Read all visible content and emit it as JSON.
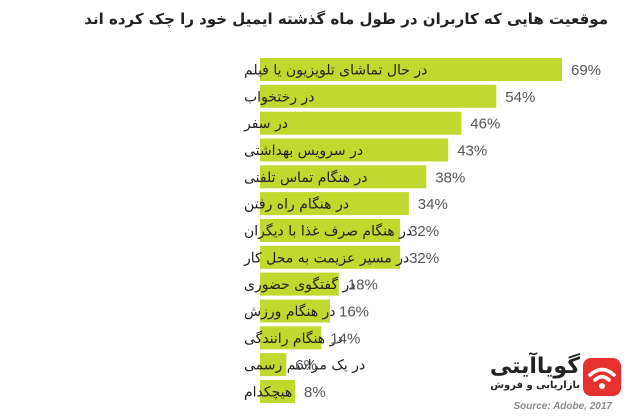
{
  "chart_data": {
    "type": "bar",
    "orientation": "horizontal",
    "title": "موقعیت هایی که کاربران در طول ماه گذشته ایمیل خود را چک کرده اند",
    "categories": [
      "در حال تماشای تلویزیون یا فیلم",
      "در رختخواب",
      "در سفر",
      "در سرویس بهداشتی",
      "در هنگام تماس تلفنی",
      "در هنگام راه رفتن",
      "در هنگام صرف غذا با دیگران",
      "در مسیر عزیمت به محل کار",
      "در گفتگوی حضوری",
      "در هنگام ورزش",
      "در هنگام رانندگی",
      "در یک مراسم رسمی",
      "هیچکدام"
    ],
    "values": [
      69,
      54,
      46,
      43,
      38,
      34,
      32,
      32,
      18,
      16,
      14,
      6,
      8
    ],
    "value_labels": [
      "69%",
      "54%",
      "46%",
      "43%",
      "38%",
      "34%",
      "32%",
      "32%",
      "18%",
      "16%",
      "14%",
      "6%",
      "8%"
    ],
    "unit": "%",
    "xlim": [
      0,
      69
    ],
    "grid": false,
    "legend": "none",
    "bar_color": "#c1d82f",
    "label_color": "#555555"
  },
  "branding": {
    "logo_word": "گویاآیتی",
    "logo_tagline": "بازاریابی و فروش",
    "logo_color": "#e8312f",
    "logo_icon": "wifi-icon"
  },
  "source": "Source: Adobe, 2017"
}
